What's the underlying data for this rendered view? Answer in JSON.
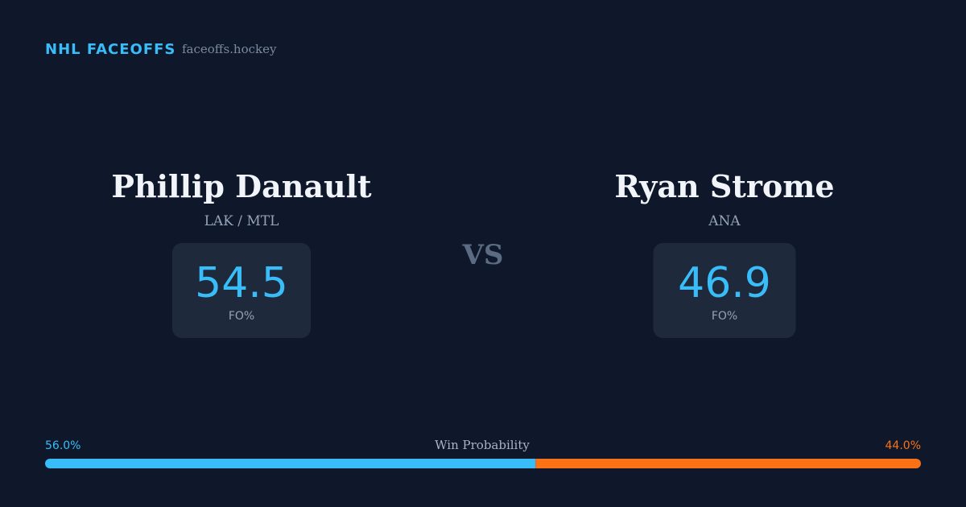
{
  "header": {
    "brand": "NHL FACEOFFS",
    "site": "faceoffs.hockey"
  },
  "players": [
    {
      "name": "Phillip Danault",
      "team": "LAK / MTL",
      "fo_pct": 54.5,
      "fo_label": "FO%"
    },
    {
      "name": "Ryan Strome",
      "team": "ANA",
      "fo_pct": 46.9,
      "fo_label": "FO%"
    }
  ],
  "vs": "VS",
  "win_probability": {
    "label": "Win Probability",
    "values": [
      56.0,
      44.0
    ],
    "value_labels": [
      "56.0%",
      "44.0%"
    ],
    "colors": [
      "#38bdf8",
      "#f97316"
    ]
  }
}
